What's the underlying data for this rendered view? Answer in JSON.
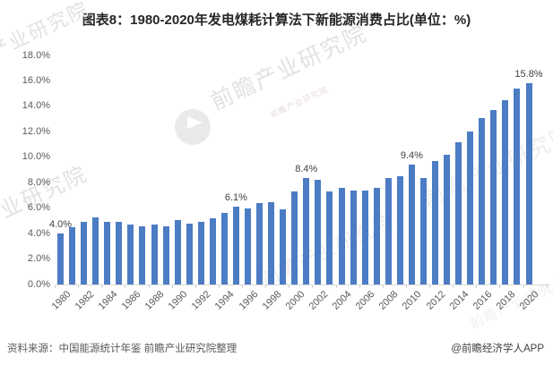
{
  "title": "图表8：1980-2020年发电煤耗计算法下新能源消费占比(单位：%)",
  "footer": {
    "source": "资料来源：中国能源统计年鉴 前瞻产业研究院整理",
    "credit": "@前瞻经济学人APP"
  },
  "watermark": {
    "brand": "前瞻产业研究院",
    "logo_icon": "qianzhan-logo-icon"
  },
  "colors": {
    "bar": "#4C7CC4",
    "title_text": "#262626",
    "axis_text": "#595959",
    "annotation_text": "#404040",
    "axis_line": "#d9d9d9",
    "watermark": "#e2e2e2"
  },
  "chart_data": {
    "type": "bar",
    "title": "图表8：1980-2020年发电煤耗计算法下新能源消费占比(单位：%)",
    "xlabel": "",
    "ylabel": "",
    "ylim": [
      0,
      18
    ],
    "ytick_step": 2,
    "grid": false,
    "legend": "none",
    "categories": [
      "1980",
      "1981",
      "1982",
      "1983",
      "1984",
      "1985",
      "1986",
      "1987",
      "1988",
      "1989",
      "1990",
      "1991",
      "1992",
      "1993",
      "1994",
      "1995",
      "1996",
      "1997",
      "1998",
      "1999",
      "2000",
      "2001",
      "2002",
      "2003",
      "2004",
      "2005",
      "2006",
      "2007",
      "2008",
      "2009",
      "2010",
      "2011",
      "2012",
      "2013",
      "2014",
      "2015",
      "2016",
      "2017",
      "2018",
      "2019",
      "2020"
    ],
    "values": [
      4.0,
      4.5,
      4.9,
      5.3,
      4.9,
      4.9,
      4.7,
      4.6,
      4.7,
      4.6,
      5.1,
      4.8,
      4.9,
      5.2,
      5.6,
      6.1,
      6.0,
      6.4,
      6.5,
      5.9,
      7.3,
      8.4,
      8.2,
      7.3,
      7.6,
      7.4,
      7.4,
      7.6,
      8.4,
      8.5,
      9.4,
      8.4,
      9.7,
      10.2,
      11.2,
      12.0,
      13.1,
      13.7,
      14.5,
      15.4,
      15.8
    ],
    "ytick_labels": [
      "0.0%",
      "2.0%",
      "4.0%",
      "6.0%",
      "8.0%",
      "10.0%",
      "12.0%",
      "14.0%",
      "16.0%",
      "18.0%"
    ],
    "xtick_labels": [
      "1980",
      "1982",
      "1984",
      "1986",
      "1988",
      "1990",
      "1992",
      "1994",
      "1996",
      "1998",
      "2000",
      "2002",
      "2004",
      "2006",
      "2008",
      "2010",
      "2012",
      "2014",
      "2016",
      "2018",
      "2020"
    ],
    "annotations": [
      {
        "category": "1980",
        "label": "4.0%"
      },
      {
        "category": "1995",
        "label": "6.1%"
      },
      {
        "category": "2001",
        "label": "8.4%"
      },
      {
        "category": "2010",
        "label": "9.4%"
      },
      {
        "category": "2020",
        "label": "15.8%"
      }
    ]
  }
}
